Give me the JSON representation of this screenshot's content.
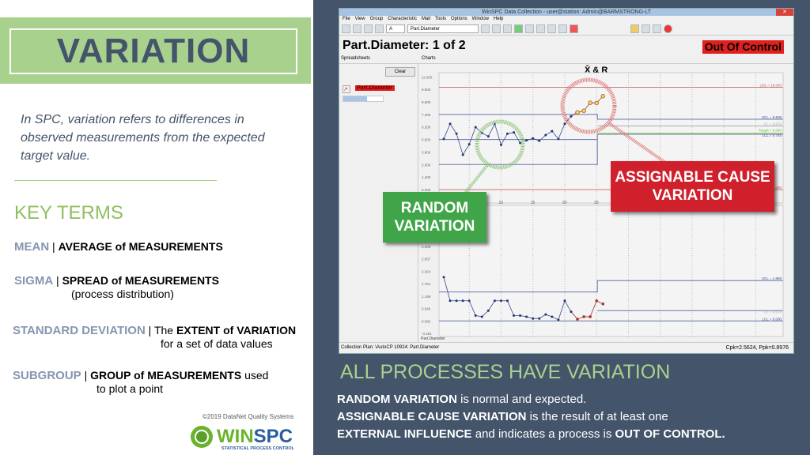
{
  "slide": {
    "title": "VARIATION",
    "intro": "In SPC, variation refers to differences in observed measurements from the expected target value.",
    "key_terms_heading": "KEY TERMS",
    "terms": [
      {
        "term": "MEAN",
        "sep": " | ",
        "def": "AVERAGE of MEASUREMENTS",
        "extra": ""
      },
      {
        "term": "SIGMA",
        "sep": " | ",
        "def": "SPREAD of MEASUREMENTS",
        "extra": "(process distribution)"
      },
      {
        "term": "STANDARD DEVIATION",
        "sep": " | ",
        "pre": "The ",
        "def": "EXTENT of VARIATION",
        "extra": "for a set of data values"
      },
      {
        "term": "SUBGROUP",
        "sep": " | ",
        "def": "GROUP of MEASUREMENTS",
        "post": " used",
        "extra": "to plot a point"
      }
    ],
    "copyright": "©2019 DataNet Quality Systems",
    "logo": {
      "text": "WINSPC",
      "tagline": "STATISTICAL PROCESS CONTROL"
    },
    "all_processes": "ALL PROCESSES HAVE VARIATION",
    "explanation": {
      "l1b": "RANDOM VARIATION",
      "l1": " is normal and expected.",
      "l2b": "ASSIGNABLE CAUSE VARIATION",
      "l2": " is the result of at least one",
      "l3b": "EXTERNAL INFLUENCE",
      "l3": " and indicates a process is ",
      "l3c": "OUT OF CONTROL."
    },
    "callouts": {
      "random": "RANDOM VARIATION",
      "assignable": "ASSIGNABLE CAUSE VARIATION"
    },
    "colors": {
      "slate": "#44546a",
      "green": "#a9d18e",
      "random": "#3fa548",
      "assignable": "#d0202c"
    }
  },
  "app": {
    "window_title": "WinSPC Data Collection - user@station: Admin@BARMSTRONG-LT",
    "menu": [
      "File",
      "View",
      "Group",
      "Characteristic",
      "Mail",
      "Tools",
      "Options",
      "Window",
      "Help"
    ],
    "chart_type_select": "A",
    "characteristic_select": "Part.Diameter",
    "page_title": "Part.Diameter:  1 of 2",
    "status_badge": "Out Of Control",
    "spreadsheets_label": "Spreadsheets",
    "charts_label": "Charts",
    "clear_button": "Clear",
    "characteristic_item": "Part.Diameter",
    "progress": 0.6,
    "status_bar": "Collection Plan: \\AutoCP 10924: Part.Diameter",
    "cpk": "Cpk=2.5624, Ppk=0.8976"
  },
  "chart_data": [
    {
      "type": "line",
      "title": "X̄ & R",
      "x": [
        1,
        2,
        3,
        4,
        5,
        6,
        7,
        8,
        9,
        10,
        11,
        12,
        13,
        14,
        15,
        16,
        17,
        18,
        19,
        20,
        21,
        22,
        23,
        24,
        25,
        26
      ],
      "values": [
        5.05,
        6.5,
        5.55,
        3.53,
        4.54,
        6.18,
        5.63,
        5.3,
        6.5,
        4.49,
        5.55,
        5.68,
        4.67,
        4.92,
        5.1,
        4.87,
        5.42,
        5.8,
        5.05,
        6.5,
        7.22,
        7.6,
        7.75,
        8.52,
        8.5,
        9.15
      ],
      "yticks": [
        "11.000",
        "9.800",
        "8.600",
        "7.400",
        "6.200",
        "5.000",
        "3.800",
        "2.600",
        "1.400",
        "0.200"
      ],
      "xticks": [
        "10",
        "15",
        "20",
        "25"
      ],
      "ylim": [
        0.2,
        11
      ],
      "limit_labels": [
        "USL = 10.000",
        "UCL = 6.608",
        "CL = 5.676",
        "Target = 5.000",
        "LCL = 4.745",
        "000"
      ]
    },
    {
      "type": "line",
      "x": [
        1,
        2,
        3,
        4,
        5,
        6,
        7,
        8,
        9,
        10,
        11,
        12,
        13,
        14,
        15,
        16,
        17,
        18,
        19,
        20,
        21,
        22,
        23,
        24,
        25,
        26
      ],
      "values": [
        2.04,
        0.99,
        0.99,
        0.99,
        0.99,
        0.33,
        0.28,
        0.55,
        0.99,
        0.99,
        0.99,
        0.33,
        0.33,
        0.28,
        0.2,
        0.2,
        0.38,
        0.28,
        0.14,
        0.99,
        0.5,
        0.17,
        0.28,
        0.28,
        0.99,
        0.85
      ],
      "yticks": [
        "3.409",
        "2.857",
        "2.304",
        "1.751",
        "1.198",
        "0.646",
        "0.092",
        "-0.461"
      ],
      "ylim": [
        -0.461,
        3.409
      ],
      "xlabel": "Part.Diameter",
      "limit_labels": [
        "UCL = 1.888",
        "CL = 0.576",
        "LCL = 0.000"
      ]
    }
  ]
}
